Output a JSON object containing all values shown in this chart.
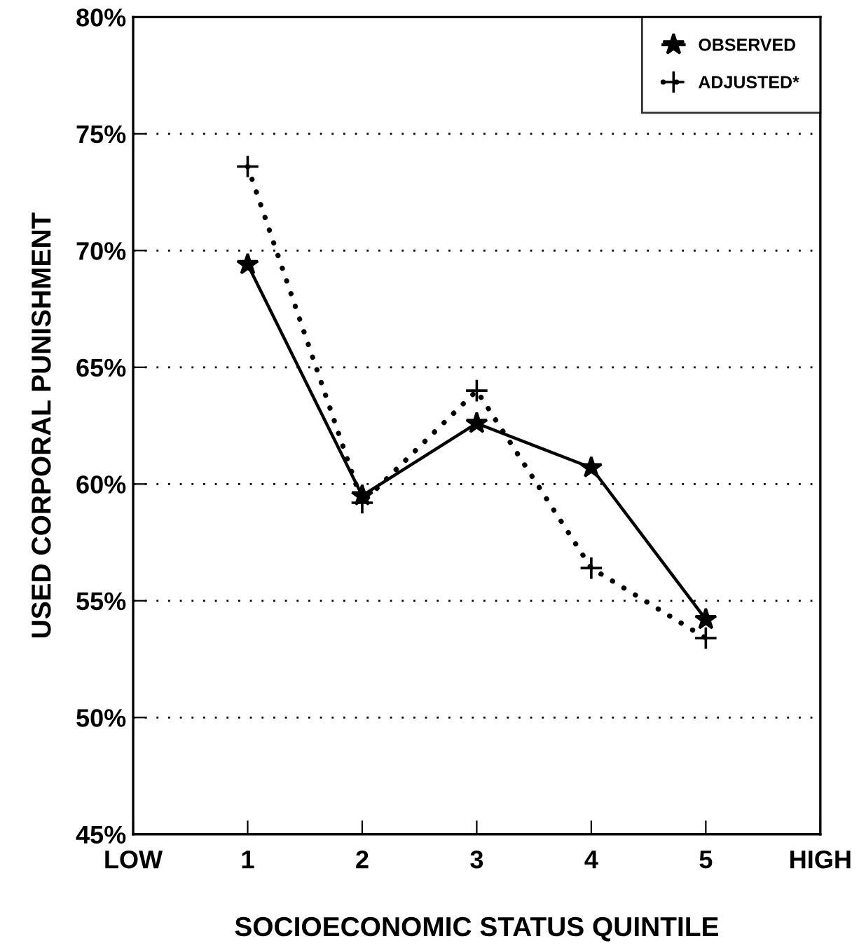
{
  "chart_data": {
    "type": "line",
    "xlabel": "SOCIOECONOMIC STATUS QUINTILE",
    "ylabel": "USED CORPORAL PUNISHMENT",
    "x": [
      1,
      2,
      3,
      4,
      5
    ],
    "series": [
      {
        "name": "OBSERVED",
        "color": "#000000",
        "marker": "star",
        "line_style": "solid",
        "values": [
          69.4,
          59.5,
          62.6,
          60.7,
          54.2
        ]
      },
      {
        "name": "ADJUSTED*",
        "color": "#000000",
        "marker": "cross",
        "line_style": "dotted",
        "values": [
          73.6,
          59.2,
          64.0,
          56.4,
          53.4
        ]
      }
    ],
    "xlim": [
      0,
      6
    ],
    "xticks": [
      {
        "value": 0,
        "label": "LOW"
      },
      1,
      2,
      3,
      4,
      5,
      {
        "value": 6,
        "label": "HIGH"
      }
    ],
    "ylim": [
      45,
      80
    ],
    "yticks": [
      {
        "value": 45,
        "label": "45%"
      },
      {
        "value": 50,
        "label": "50%"
      },
      {
        "value": 55,
        "label": "55%"
      },
      {
        "value": 60,
        "label": "60%"
      },
      {
        "value": 65,
        "label": "65%"
      },
      {
        "value": 70,
        "label": "70%"
      },
      {
        "value": 75,
        "label": "75%"
      },
      {
        "value": 80,
        "label": "80%"
      }
    ],
    "grid": "y",
    "legend": "top right"
  }
}
